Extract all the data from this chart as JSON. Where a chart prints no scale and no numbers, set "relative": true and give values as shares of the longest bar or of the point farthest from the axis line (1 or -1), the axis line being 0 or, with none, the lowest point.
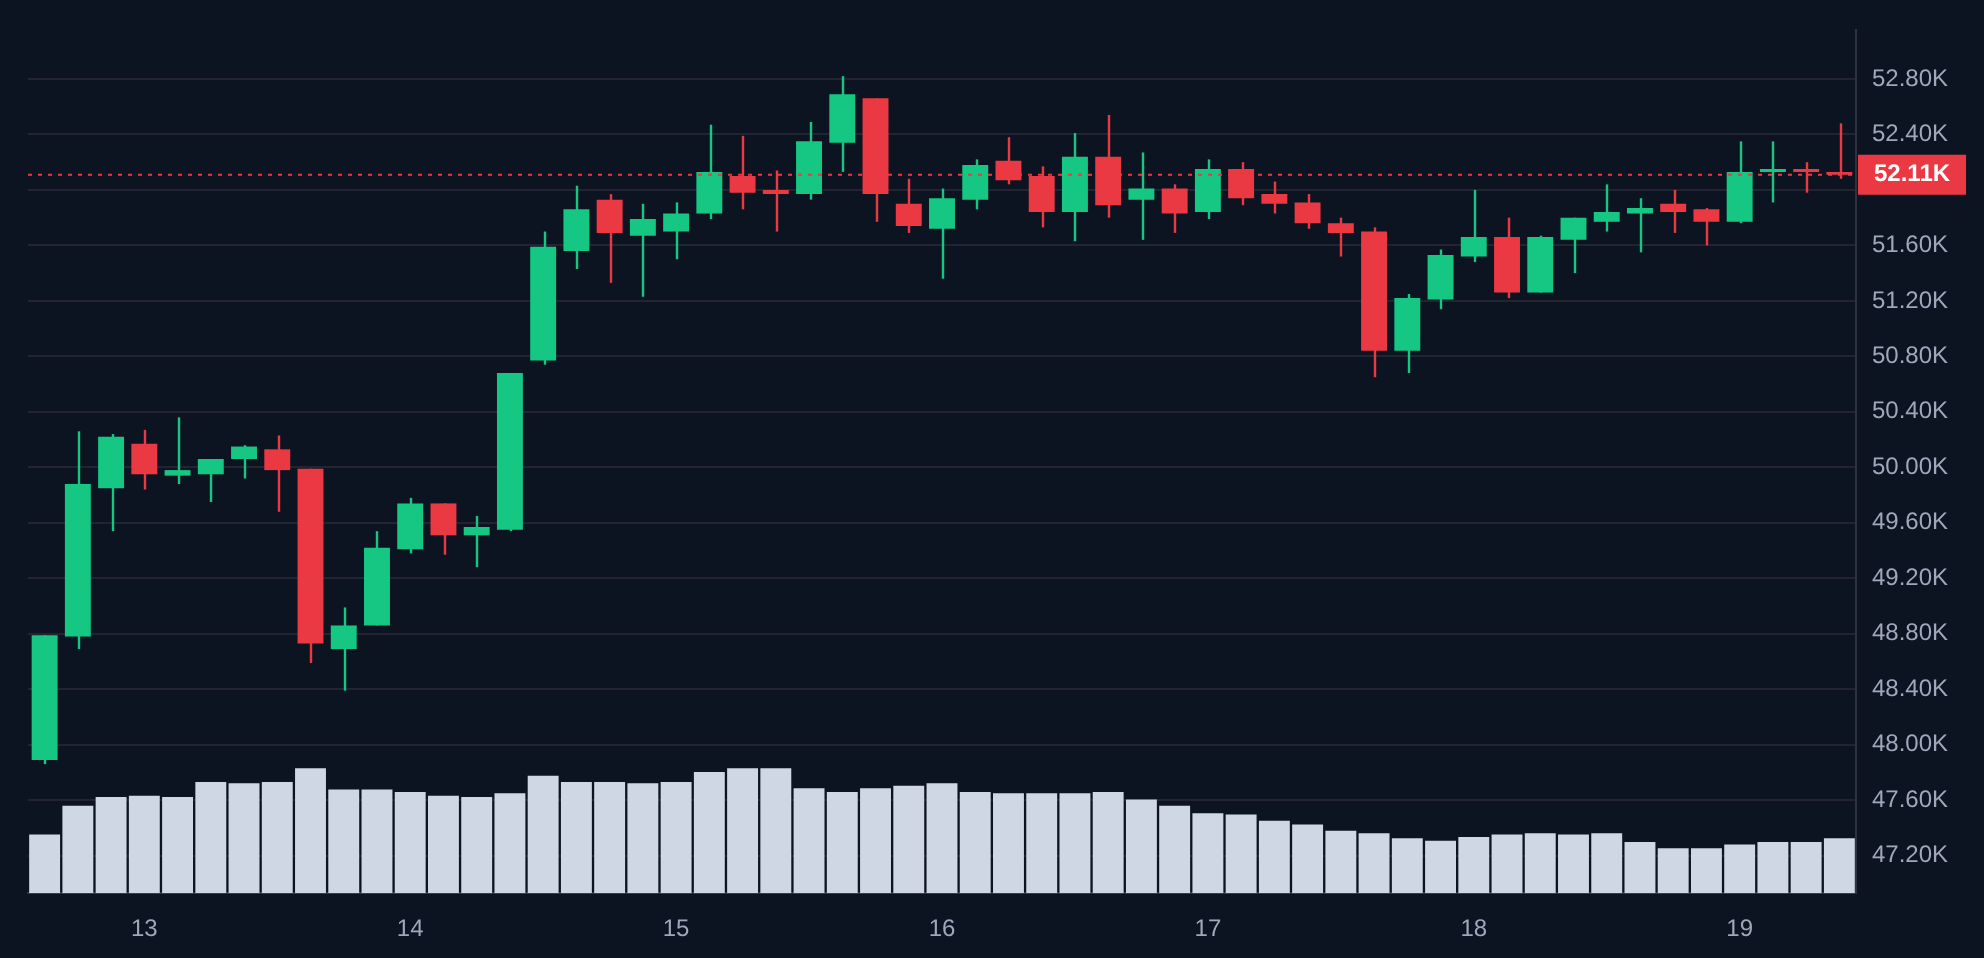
{
  "chart_data": [
    {
      "type": "candlestick",
      "categories": [
        null,
        null,
        null,
        "13",
        null,
        null,
        null,
        null,
        null,
        null,
        null,
        "14",
        null,
        null,
        null,
        null,
        null,
        null,
        null,
        "15",
        null,
        null,
        null,
        null,
        null,
        null,
        null,
        "16",
        null,
        null,
        null,
        null,
        null,
        null,
        null,
        "17",
        null,
        null,
        null,
        null,
        null,
        null,
        null,
        "18",
        null,
        null,
        null,
        null,
        null,
        null,
        null,
        "19",
        null,
        null,
        null
      ],
      "ohlc": [
        [
          47.89,
          48.79,
          47.86,
          48.79
        ],
        [
          48.78,
          50.26,
          48.69,
          49.88
        ],
        [
          49.85,
          50.24,
          49.54,
          50.22
        ],
        [
          50.17,
          50.27,
          49.84,
          49.95
        ],
        [
          49.94,
          50.36,
          49.88,
          49.98
        ],
        [
          49.95,
          50.06,
          49.75,
          50.06
        ],
        [
          50.06,
          50.16,
          49.92,
          50.15
        ],
        [
          50.13,
          50.23,
          49.68,
          49.98
        ],
        [
          49.99,
          49.99,
          48.59,
          48.73
        ],
        [
          48.69,
          48.99,
          48.39,
          48.86
        ],
        [
          48.86,
          49.54,
          48.86,
          49.42
        ],
        [
          49.41,
          49.78,
          49.38,
          49.74
        ],
        [
          49.74,
          49.74,
          49.37,
          49.51
        ],
        [
          49.51,
          49.65,
          49.28,
          49.57
        ],
        [
          49.55,
          50.68,
          49.54,
          50.68
        ],
        [
          50.77,
          51.7,
          50.74,
          51.59
        ],
        [
          51.56,
          52.03,
          51.43,
          51.86
        ],
        [
          51.93,
          51.97,
          51.33,
          51.69
        ],
        [
          51.67,
          51.9,
          51.23,
          51.79
        ],
        [
          51.7,
          51.91,
          51.5,
          51.83
        ],
        [
          51.83,
          52.47,
          51.79,
          52.13
        ],
        [
          52.1,
          52.39,
          51.86,
          51.98
        ],
        [
          52,
          52.14,
          51.7,
          51.97
        ],
        [
          51.97,
          52.49,
          51.93,
          52.35
        ],
        [
          52.34,
          52.82,
          52.13,
          52.69
        ],
        [
          52.66,
          52.66,
          51.77,
          51.97
        ],
        [
          51.9,
          52.08,
          51.69,
          51.74
        ],
        [
          51.72,
          52.01,
          51.36,
          51.94
        ],
        [
          51.93,
          52.22,
          51.86,
          52.18
        ],
        [
          52.21,
          52.38,
          52.04,
          52.07
        ],
        [
          52.1,
          52.17,
          51.73,
          51.84
        ],
        [
          51.84,
          52.41,
          51.63,
          52.24
        ],
        [
          52.24,
          52.54,
          51.8,
          51.89
        ],
        [
          51.93,
          52.27,
          51.64,
          52.01
        ],
        [
          52.01,
          52.04,
          51.69,
          51.83
        ],
        [
          51.84,
          52.22,
          51.79,
          52.15
        ],
        [
          52.15,
          52.2,
          51.89,
          51.94
        ],
        [
          51.97,
          52.06,
          51.83,
          51.9
        ],
        [
          51.91,
          51.97,
          51.72,
          51.76
        ],
        [
          51.76,
          51.8,
          51.52,
          51.69
        ],
        [
          51.7,
          51.73,
          50.65,
          50.84
        ],
        [
          50.84,
          51.25,
          50.68,
          51.22
        ],
        [
          51.21,
          51.57,
          51.14,
          51.53
        ],
        [
          51.52,
          52,
          51.48,
          51.66
        ],
        [
          51.66,
          51.8,
          51.22,
          51.26
        ],
        [
          51.26,
          51.67,
          51.26,
          51.66
        ],
        [
          51.64,
          51.8,
          51.4,
          51.8
        ],
        [
          51.77,
          52.04,
          51.7,
          51.84
        ],
        [
          51.83,
          51.94,
          51.55,
          51.87
        ],
        [
          51.9,
          52,
          51.69,
          51.84
        ],
        [
          51.86,
          51.87,
          51.6,
          51.77
        ],
        [
          51.77,
          52.35,
          51.76,
          52.13
        ],
        [
          52.13,
          52.35,
          51.91,
          52.15
        ],
        [
          52.15,
          52.2,
          51.98,
          52.13
        ],
        [
          52.13,
          52.48,
          52.08,
          52.11
        ]
      ],
      "colors": [
        "#16c784",
        "#16c784",
        "#16c784",
        "#ea3943",
        "#16c784",
        "#16c784",
        "#16c784",
        "#ea3943",
        "#ea3943",
        "#16c784",
        "#16c784",
        "#16c784",
        "#ea3943",
        "#16c784",
        "#16c784",
        "#16c784",
        "#16c784",
        "#ea3943",
        "#16c784",
        "#16c784",
        "#16c784",
        "#ea3943",
        "#ea3943",
        "#16c784",
        "#16c784",
        "#ea3943",
        "#ea3943",
        "#16c784",
        "#16c784",
        "#ea3943",
        "#ea3943",
        "#16c784",
        "#ea3943",
        "#16c784",
        "#ea3943",
        "#16c784",
        "#ea3943",
        "#ea3943",
        "#ea3943",
        "#ea3943",
        "#ea3943",
        "#16c784",
        "#16c784",
        "#16c784",
        "#ea3943",
        "#16c784",
        "#16c784",
        "#16c784",
        "#16c784",
        "#ea3943",
        "#ea3943",
        "#16c784",
        "#16c784",
        "#ea3943",
        "#ea3943"
      ],
      "ylim": [
        46.93,
        53.15
      ],
      "yticks": [
        {
          "value": 47.2,
          "label": "47.20K"
        },
        {
          "value": 47.6,
          "label": "47.60K"
        },
        {
          "value": 48,
          "label": "48.00K"
        },
        {
          "value": 48.4,
          "label": "48.40K"
        },
        {
          "value": 48.8,
          "label": "48.80K"
        },
        {
          "value": 49.2,
          "label": "49.20K"
        },
        {
          "value": 49.6,
          "label": "49.60K"
        },
        {
          "value": 50,
          "label": "50.00K"
        },
        {
          "value": 50.4,
          "label": "50.40K"
        },
        {
          "value": 50.8,
          "label": "50.80K"
        },
        {
          "value": 51.2,
          "label": "51.20K"
        },
        {
          "value": 51.6,
          "label": "51.60K"
        },
        {
          "value": 52,
          "label": null
        },
        {
          "value": 52.4,
          "label": "52.40K"
        },
        {
          "value": 52.8,
          "label": "52.80K"
        }
      ],
      "ref_lines": [
        {
          "axis": "y",
          "value": 52.11,
          "label": "52.11K",
          "color": "#ea3943",
          "line_style": "dotted"
        }
      ],
      "grid": "y",
      "legend": false
    },
    {
      "type": "bar",
      "relative": true,
      "color": "#cfd6e4",
      "categories": [
        null,
        null,
        null,
        null,
        null,
        null,
        null,
        null,
        null,
        null,
        null,
        null,
        null,
        null,
        null,
        null,
        null,
        null,
        null,
        null,
        null,
        null,
        null,
        null,
        null,
        null,
        null,
        null,
        null,
        null,
        null,
        null,
        null,
        null,
        null,
        null,
        null,
        null,
        null,
        null,
        null,
        null,
        null,
        null,
        null,
        null,
        null,
        null,
        null,
        null,
        null,
        null,
        null,
        null,
        null
      ],
      "values": [
        0.47,
        0.7,
        0.77,
        0.78,
        0.77,
        0.89,
        0.88,
        0.89,
        1,
        0.83,
        0.83,
        0.81,
        0.78,
        0.77,
        0.8,
        0.94,
        0.89,
        0.89,
        0.88,
        0.89,
        0.97,
        1,
        1,
        0.84,
        0.81,
        0.84,
        0.86,
        0.88,
        0.81,
        0.8,
        0.8,
        0.8,
        0.81,
        0.75,
        0.7,
        0.64,
        0.63,
        0.58,
        0.55,
        0.5,
        0.48,
        0.44,
        0.42,
        0.45,
        0.47,
        0.48,
        0.47,
        0.48,
        0.41,
        0.36,
        0.36,
        0.39,
        0.41,
        0.41,
        0.44
      ]
    }
  ]
}
